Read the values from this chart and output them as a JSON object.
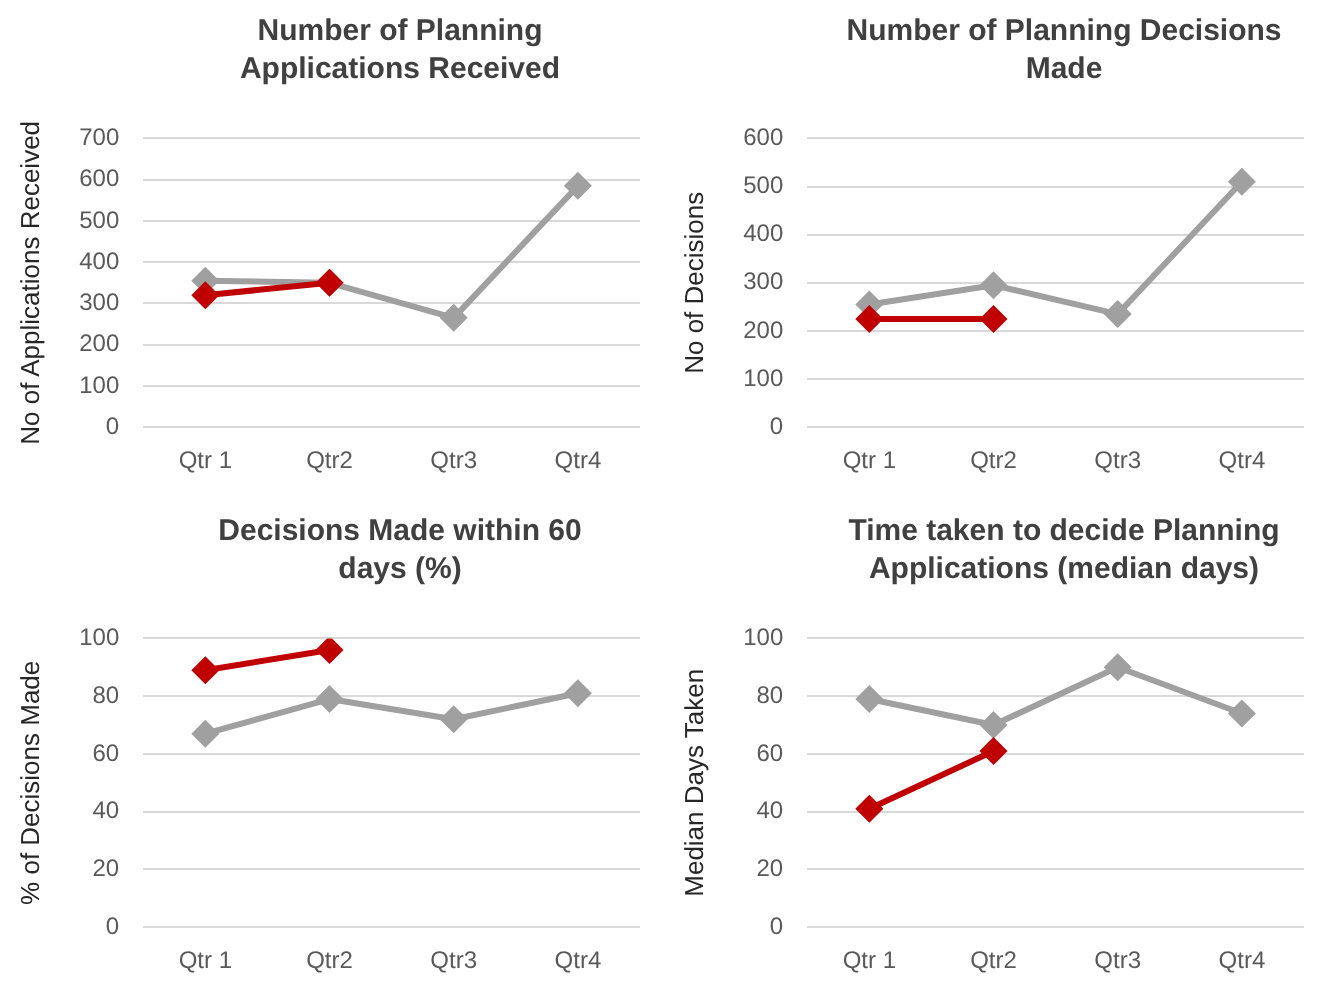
{
  "chart_data": [
    {
      "type": "line",
      "title": "Number of Planning Applications Received",
      "ylabel": "No of Applications Received",
      "categories": [
        "Qtr 1",
        "Qtr2",
        "Qtr3",
        "Qtr4"
      ],
      "series": [
        {
          "color": "#a0a0a0",
          "values": [
            355,
            350,
            265,
            585
          ]
        },
        {
          "color": "#c00000",
          "values": [
            320,
            350,
            null,
            null
          ]
        }
      ],
      "ylim": [
        0,
        700
      ],
      "yticks": [
        0,
        100,
        200,
        300,
        400,
        500,
        600,
        700
      ],
      "grid": "y",
      "marker": "diamond",
      "line_style": "solid"
    },
    {
      "type": "line",
      "title": "Number of Planning Decisions Made",
      "ylabel": "No of Decisions",
      "categories": [
        "Qtr 1",
        "Qtr2",
        "Qtr3",
        "Qtr4"
      ],
      "series": [
        {
          "color": "#a0a0a0",
          "values": [
            255,
            295,
            235,
            510
          ]
        },
        {
          "color": "#c00000",
          "values": [
            225,
            225,
            null,
            null
          ]
        }
      ],
      "ylim": [
        0,
        600
      ],
      "yticks": [
        0,
        100,
        200,
        300,
        400,
        500,
        600
      ],
      "grid": "y",
      "marker": "diamond",
      "line_style": "solid"
    },
    {
      "type": "line",
      "title": "Decisions Made within 60 days (%)",
      "ylabel": "% of Decisions Made",
      "categories": [
        "Qtr 1",
        "Qtr2",
        "Qtr3",
        "Qtr4"
      ],
      "series": [
        {
          "color": "#a0a0a0",
          "values": [
            67,
            79,
            72,
            81
          ]
        },
        {
          "color": "#c00000",
          "values": [
            89,
            96,
            null,
            null
          ]
        }
      ],
      "ylim": [
        0,
        100
      ],
      "yticks": [
        0,
        20,
        40,
        60,
        80,
        100
      ],
      "grid": "y",
      "marker": "diamond",
      "line_style": "solid"
    },
    {
      "type": "line",
      "title": "Time taken to decide Planning Applications (median days)",
      "ylabel": "Median Days Taken",
      "categories": [
        "Qtr 1",
        "Qtr2",
        "Qtr3",
        "Qtr4"
      ],
      "series": [
        {
          "color": "#a0a0a0",
          "values": [
            79,
            70,
            90,
            74
          ]
        },
        {
          "color": "#c00000",
          "values": [
            41,
            61,
            null,
            null
          ]
        }
      ],
      "ylim": [
        0,
        100
      ],
      "yticks": [
        0,
        20,
        40,
        60,
        80,
        100
      ],
      "grid": "y",
      "marker": "diamond",
      "line_style": "solid"
    }
  ]
}
